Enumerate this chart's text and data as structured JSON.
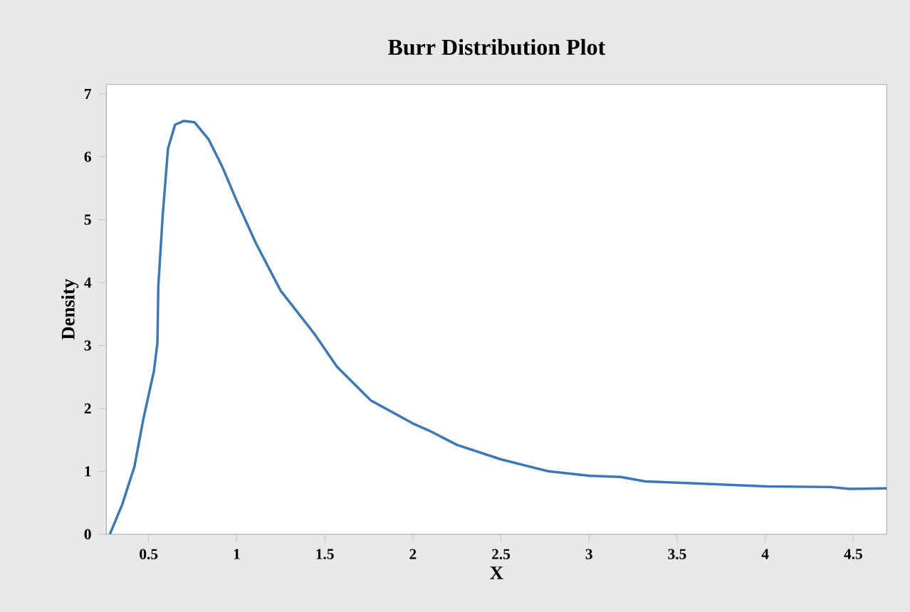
{
  "chart_data": {
    "type": "line",
    "title": "Burr Distribution Plot",
    "xlabel": "X",
    "ylabel": "Density",
    "xlim": [
      0.26,
      4.69
    ],
    "ylim": [
      0,
      7.15
    ],
    "xticks": [
      0.5,
      1,
      1.5,
      2,
      2.5,
      3,
      3.5,
      4,
      4.5
    ],
    "yticks": [
      0,
      1,
      2,
      3,
      4,
      5,
      6,
      7
    ],
    "grid": false,
    "marker": "none",
    "line_style": "solid",
    "series": [
      {
        "color": "#3a78b8",
        "x": [
          0.28,
          0.35,
          0.42,
          0.47,
          0.53,
          0.55,
          0.555,
          0.58,
          0.61,
          0.65,
          0.7,
          0.76,
          0.84,
          0.92,
          1.0,
          1.11,
          1.25,
          1.44,
          1.57,
          1.76,
          2.0,
          2.09,
          2.25,
          2.5,
          2.77,
          3.0,
          3.18,
          3.32,
          3.5,
          4.01,
          4.37,
          4.48,
          4.69
        ],
        "values": [
          0,
          0.47,
          1.08,
          1.83,
          2.59,
          3.04,
          3.94,
          5.07,
          6.13,
          6.51,
          6.57,
          6.55,
          6.28,
          5.83,
          5.3,
          4.62,
          3.87,
          3.19,
          2.66,
          2.13,
          1.76,
          1.65,
          1.42,
          1.19,
          1.0,
          0.93,
          0.91,
          0.84,
          0.82,
          0.76,
          0.75,
          0.72,
          0.73
        ]
      }
    ]
  }
}
